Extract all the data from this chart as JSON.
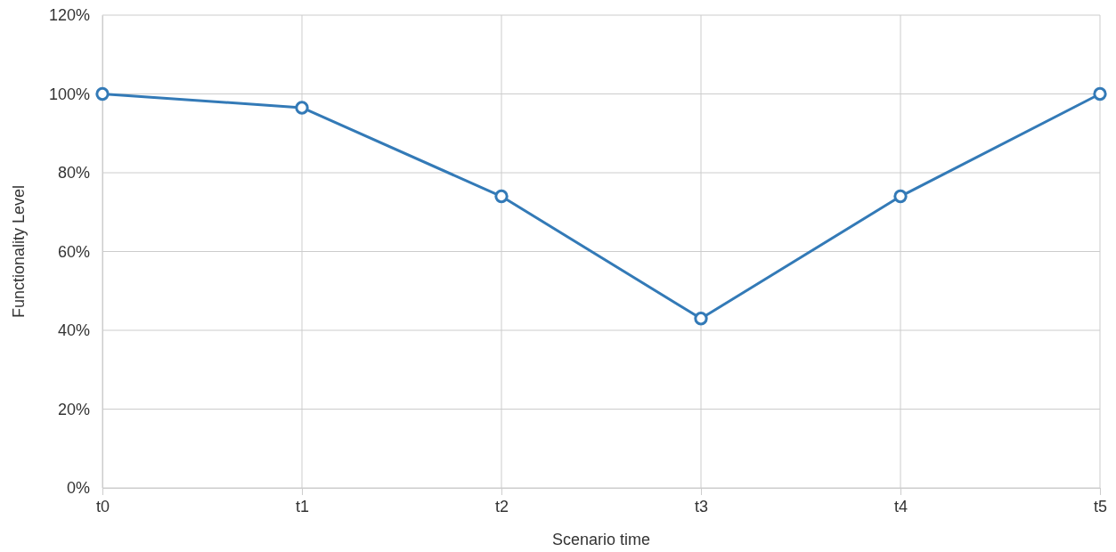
{
  "chart_data": {
    "type": "line",
    "xlabel": "Scenario time",
    "ylabel": "Functionality Level",
    "categories": [
      "t0",
      "t1",
      "t2",
      "t3",
      "t4",
      "t5"
    ],
    "series": [
      {
        "color": "#337ab7",
        "values": [
          100,
          96.5,
          74,
          43,
          74,
          100
        ]
      }
    ],
    "ylim": [
      0,
      120
    ],
    "yticks": [
      {
        "value": 0,
        "label": "0%"
      },
      {
        "value": 20,
        "label": "20%"
      },
      {
        "value": 40,
        "label": "40%"
      },
      {
        "value": 60,
        "label": "60%"
      },
      {
        "value": 80,
        "label": "80%"
      },
      {
        "value": 100,
        "label": "100%"
      },
      {
        "value": 120,
        "label": "120%"
      }
    ],
    "grid": true,
    "marker": "circle",
    "line_style": "solid"
  }
}
